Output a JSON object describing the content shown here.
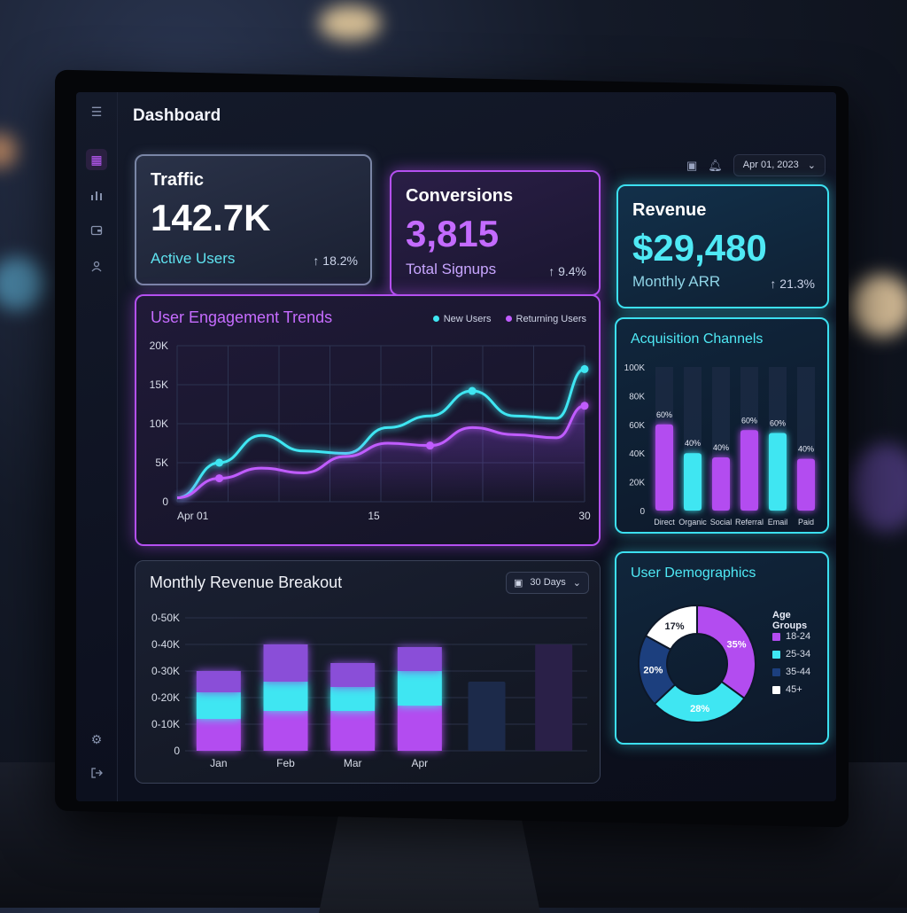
{
  "dashboard": {
    "title": "Dashboard",
    "date": "Apr 01, 2023"
  },
  "kpis": {
    "traffic": {
      "label": "Traffic",
      "value": "142.7K",
      "sub": "Active Users",
      "change": "↑ 18.2%"
    },
    "conversions": {
      "label": "Conversions",
      "value": "3,815",
      "sub": "Total Signups",
      "change": "↑ 9.4%"
    },
    "revenue": {
      "label": "Revenue",
      "value": "$29,480",
      "sub": "Monthly ARR",
      "change": "↑ 21.3%"
    }
  },
  "engagement": {
    "title": "User Engagement Trends",
    "legend_new": "New Users",
    "legend_returning": "Returning Users"
  },
  "acquisition": {
    "title": "Acquisition Channels"
  },
  "monthly": {
    "title": "Monthly Revenue Breakout",
    "range": "30 Days"
  },
  "demographics": {
    "title": "User Demographics",
    "legend_title": "Age Groups",
    "groups": [
      {
        "label": "18-24",
        "pct": 35,
        "text": "35%",
        "color": "#b34cf0"
      },
      {
        "label": "25-34",
        "pct": 28,
        "text": "28%",
        "color": "#3fe6f2"
      },
      {
        "label": "35-44",
        "pct": 20,
        "text": "20%",
        "color": "#1c3f7e"
      },
      {
        "label": "45+",
        "pct": 17,
        "text": "17%",
        "color": "#ffffff"
      }
    ]
  },
  "colors": {
    "cyan": "#3fe6f2",
    "purple": "#c05cff"
  },
  "icons": [
    "menu-icon",
    "grid-icon",
    "chart-icon",
    "wallet-icon",
    "users-icon",
    "settings-icon",
    "logout-icon",
    "calendar-icon",
    "bell-icon",
    "chevron-down-icon"
  ],
  "chart_data": [
    {
      "type": "line",
      "title": "User Engagement Trends",
      "x_ticks": [
        "Apr 01",
        "15",
        "30"
      ],
      "y_ticks": [
        "0",
        "5K",
        "10K",
        "15K",
        "20K"
      ],
      "ylim": [
        0,
        20000
      ],
      "x": [
        1,
        4,
        7,
        10,
        13,
        16,
        19,
        22,
        25,
        28,
        30
      ],
      "series": [
        {
          "name": "New Users",
          "color": "#3fe6f2",
          "values": [
            500,
            5000,
            8500,
            6500,
            6200,
            9500,
            11000,
            14200,
            11000,
            10700,
            17000
          ]
        },
        {
          "name": "Returning Users",
          "color": "#c05cff",
          "values": [
            500,
            3000,
            4300,
            3700,
            5800,
            7500,
            7200,
            9500,
            8600,
            8200,
            12300
          ]
        }
      ],
      "markers": {
        "New Users": [
          4,
          22,
          26,
          30
        ],
        "Returning Users": [
          4,
          14,
          19,
          26,
          30
        ]
      }
    },
    {
      "type": "bar",
      "title": "Acquisition Channels",
      "categories": [
        "Direct",
        "Organic",
        "Social",
        "Referral",
        "Email",
        "Paid"
      ],
      "y_ticks": [
        "0",
        "20K",
        "40K",
        "60K",
        "80K",
        "100K"
      ],
      "ylim": [
        0,
        100000
      ],
      "values": [
        60000,
        40000,
        37000,
        56000,
        54000,
        36000
      ],
      "labels": [
        "60%",
        "40%",
        "40%",
        "60%",
        "60%",
        "40%"
      ],
      "colors": [
        "#b34cf0",
        "#3fe6f2",
        "#b34cf0",
        "#b34cf0",
        "#3fe6f2",
        "#b34cf0"
      ]
    },
    {
      "type": "bar",
      "title": "Monthly Revenue Breakout",
      "categories": [
        "Jan",
        "Feb",
        "Mar",
        "Apr",
        "",
        ""
      ],
      "y_ticks": [
        "0",
        "0-10K",
        "0-20K",
        "0-30K",
        "0-40K",
        "0-50K"
      ],
      "ylim": [
        0,
        50000
      ],
      "series": [
        {
          "name": "base",
          "values": [
            12000,
            15000,
            15000,
            17000,
            0,
            0
          ],
          "color": "#b34cf0"
        },
        {
          "name": "mid",
          "values": [
            10000,
            11000,
            9000,
            13000,
            0,
            0
          ],
          "color": "#3fe6f2"
        },
        {
          "name": "top",
          "values": [
            8000,
            14000,
            9000,
            9000,
            0,
            0
          ],
          "color": "#8a4ed8"
        }
      ],
      "ghost": [
        0,
        0,
        0,
        0,
        26000,
        40000
      ],
      "ghost_colors": [
        "#1c2a4a",
        "#2a2048"
      ]
    },
    {
      "type": "pie",
      "title": "User Demographics",
      "labels": [
        "18-24",
        "25-34",
        "35-44",
        "45+"
      ],
      "values": [
        35,
        28,
        20,
        17
      ]
    }
  ]
}
